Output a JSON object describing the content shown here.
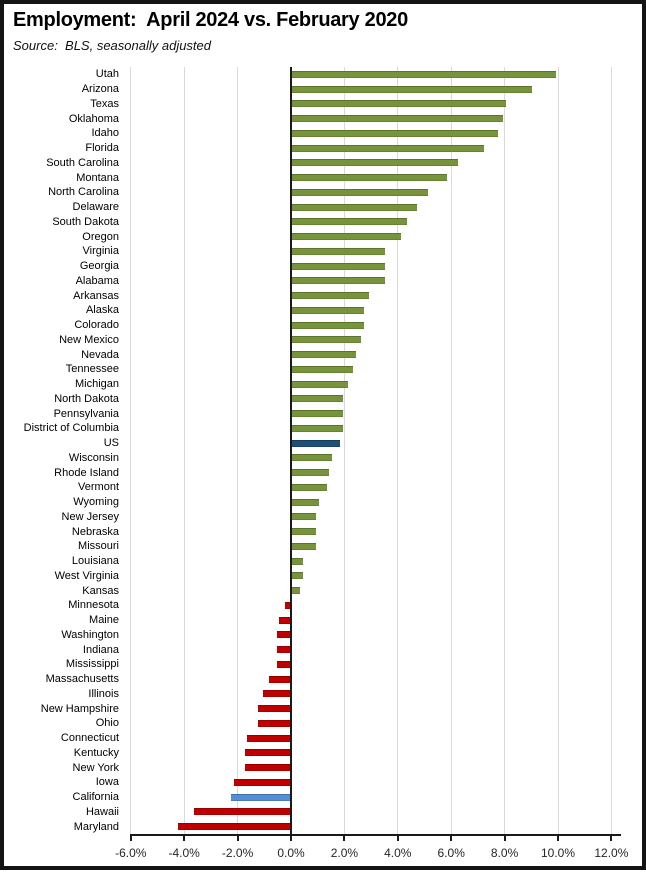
{
  "title": "Employment:  April 2024 vs. February 2020",
  "source": "Source:  BLS, seasonally adjusted",
  "colors": {
    "positive_bar": "#77943C",
    "negative_bar": "#C00000",
    "us_bar": "#1F4E79",
    "california_bar": "#558ED5",
    "gridline": "#D9D9D9",
    "zero_line": "#1A1A1A",
    "axis_line": "#1A1A1A",
    "text": "#000000"
  },
  "chart_data": {
    "type": "bar",
    "orientation": "horizontal",
    "title": "Employment:  April 2024 vs. February 2020",
    "subtitle": "Source:  BLS, seasonally adjusted",
    "xlabel": "",
    "ylabel": "",
    "xlim": [
      -6,
      12.4
    ],
    "grid": true,
    "legend": false,
    "x_ticks": [
      -6,
      -4,
      -2,
      0,
      2,
      4,
      6,
      8,
      10,
      12
    ],
    "x_tick_labels": [
      "-6.0%",
      "-4.0%",
      "-2.0%",
      "0.0%",
      "2.0%",
      "4.0%",
      "6.0%",
      "8.0%",
      "10.0%",
      "12.0%"
    ],
    "value_unit": "%",
    "categories": [
      "Utah",
      "Arizona",
      "Texas",
      "Oklahoma",
      "Idaho",
      "Florida",
      "South Carolina",
      "Montana",
      "North Carolina",
      "Delaware",
      "South Dakota",
      "Oregon",
      "Virginia",
      "Georgia",
      "Alabama",
      "Arkansas",
      "Alaska",
      "Colorado",
      "New Mexico",
      "Nevada",
      "Tennessee",
      "Michigan",
      "North Dakota",
      "Pennsylvania",
      "District of Columbia",
      "US",
      "Wisconsin",
      "Rhode Island",
      "Vermont",
      "Wyoming",
      "New Jersey",
      "Nebraska",
      "Missouri",
      "Louisiana",
      "West Virginia",
      "Kansas",
      "Minnesota",
      "Maine",
      "Washington",
      "Indiana",
      "Mississippi",
      "Massachusetts",
      "Illinois",
      "New Hampshire",
      "Ohio",
      "Connecticut",
      "Kentucky",
      "New York",
      "Iowa",
      "California",
      "Hawaii",
      "Maryland"
    ],
    "values": [
      9.9,
      9.0,
      8.0,
      7.9,
      7.7,
      7.2,
      6.2,
      5.8,
      5.1,
      4.7,
      4.3,
      4.1,
      3.5,
      3.5,
      3.5,
      2.9,
      2.7,
      2.7,
      2.6,
      2.4,
      2.3,
      2.1,
      1.9,
      1.9,
      1.9,
      1.8,
      1.5,
      1.4,
      1.3,
      1.0,
      0.9,
      0.9,
      0.9,
      0.4,
      0.4,
      0.3,
      -0.2,
      -0.4,
      -0.5,
      -0.5,
      -0.5,
      -0.8,
      -1.0,
      -1.2,
      -1.2,
      -1.6,
      -1.7,
      -1.7,
      -2.1,
      -2.2,
      -3.6,
      -4.2
    ],
    "highlights": {
      "US": "us_bar",
      "California": "california_bar"
    }
  }
}
